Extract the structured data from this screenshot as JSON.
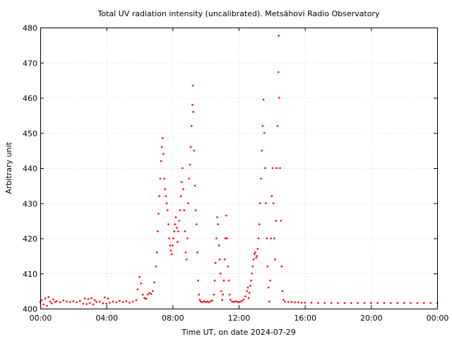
{
  "chart_data": {
    "type": "scatter",
    "title": "Total UV radiation intensity (uncalibrated). Metsähovi Radio Observatory",
    "xlabel": "Time UT, on date 2024-07-29",
    "ylabel": "Arbitrary unit",
    "xlim": [
      0,
      24
    ],
    "ylim": [
      400,
      480
    ],
    "x_ticks": [
      {
        "value": 0,
        "label": "00:00"
      },
      {
        "value": 4,
        "label": "04:00"
      },
      {
        "value": 8,
        "label": "08:00"
      },
      {
        "value": 12,
        "label": "12:00"
      },
      {
        "value": 16,
        "label": "16:00"
      },
      {
        "value": 20,
        "label": "20:00"
      },
      {
        "value": 24,
        "label": "00:00"
      }
    ],
    "y_ticks": [
      400,
      410,
      420,
      430,
      440,
      450,
      460,
      470,
      480
    ],
    "grid": true,
    "color": "#ff0000",
    "series": [
      {
        "name": "",
        "points": [
          [
            0.0,
            401.8
          ],
          [
            0.1,
            402.4
          ],
          [
            0.2,
            401.2
          ],
          [
            0.3,
            402.9
          ],
          [
            0.4,
            400.8
          ],
          [
            0.5,
            403.3
          ],
          [
            0.6,
            402.0
          ],
          [
            0.7,
            401.5
          ],
          [
            0.8,
            402.6
          ],
          [
            0.9,
            401.9
          ],
          [
            1.0,
            402.1
          ],
          [
            1.2,
            401.8
          ],
          [
            1.4,
            402.3
          ],
          [
            1.6,
            402.0
          ],
          [
            1.8,
            401.9
          ],
          [
            2.0,
            402.1
          ],
          [
            2.2,
            401.8
          ],
          [
            2.4,
            402.2
          ],
          [
            2.6,
            401.4
          ],
          [
            2.7,
            402.9
          ],
          [
            2.8,
            401.3
          ],
          [
            2.9,
            402.7
          ],
          [
            3.0,
            401.6
          ],
          [
            3.1,
            403.0
          ],
          [
            3.2,
            401.2
          ],
          [
            3.3,
            402.4
          ],
          [
            3.4,
            401.9
          ],
          [
            3.6,
            402.0
          ],
          [
            3.8,
            401.5
          ],
          [
            3.9,
            403.2
          ],
          [
            4.0,
            401.4
          ],
          [
            4.1,
            402.9
          ],
          [
            4.2,
            401.7
          ],
          [
            4.4,
            402.0
          ],
          [
            4.6,
            401.8
          ],
          [
            4.8,
            402.2
          ],
          [
            5.0,
            401.9
          ],
          [
            5.2,
            402.1
          ],
          [
            5.4,
            401.7
          ],
          [
            5.6,
            402.0
          ],
          [
            5.8,
            402.4
          ],
          [
            5.9,
            405.5
          ],
          [
            6.0,
            409.0
          ],
          [
            6.1,
            407.2
          ],
          [
            6.2,
            404.0
          ],
          [
            6.3,
            403.0
          ],
          [
            6.4,
            402.8
          ],
          [
            6.5,
            404.0
          ],
          [
            6.6,
            404.5
          ],
          [
            6.7,
            404.2
          ],
          [
            6.8,
            405.0
          ],
          [
            6.9,
            407.5
          ],
          [
            7.0,
            412.0
          ],
          [
            7.05,
            416.0
          ],
          [
            7.1,
            422.0
          ],
          [
            7.15,
            427.0
          ],
          [
            7.2,
            432.0
          ],
          [
            7.25,
            437.0
          ],
          [
            7.3,
            442.0
          ],
          [
            7.35,
            446.0
          ],
          [
            7.4,
            448.5
          ],
          [
            7.45,
            444.0
          ],
          [
            7.5,
            437.0
          ],
          [
            7.55,
            434.0
          ],
          [
            7.6,
            432.0
          ],
          [
            7.65,
            430.0
          ],
          [
            7.7,
            428.0
          ],
          [
            7.75,
            424.0
          ],
          [
            7.8,
            420.0
          ],
          [
            7.85,
            418.0
          ],
          [
            7.9,
            416.5
          ],
          [
            7.95,
            415.5
          ],
          [
            8.0,
            418.0
          ],
          [
            8.05,
            420.0
          ],
          [
            8.1,
            422.0
          ],
          [
            8.15,
            424.0
          ],
          [
            8.2,
            426.0
          ],
          [
            8.25,
            423.0
          ],
          [
            8.3,
            419.0
          ],
          [
            8.35,
            422.0
          ],
          [
            8.4,
            425.0
          ],
          [
            8.45,
            428.0
          ],
          [
            8.5,
            432.0
          ],
          [
            8.55,
            436.0
          ],
          [
            8.6,
            440.0
          ],
          [
            8.65,
            434.0
          ],
          [
            8.7,
            428.0
          ],
          [
            8.75,
            422.0
          ],
          [
            8.8,
            416.0
          ],
          [
            8.85,
            414.0
          ],
          [
            8.9,
            420.0
          ],
          [
            8.95,
            430.0
          ],
          [
            9.0,
            437.0
          ],
          [
            9.05,
            441.0
          ],
          [
            9.1,
            446.0
          ],
          [
            9.15,
            452.0
          ],
          [
            9.2,
            458.0
          ],
          [
            9.22,
            463.5
          ],
          [
            9.25,
            456.0
          ],
          [
            9.3,
            445.0
          ],
          [
            9.35,
            435.0
          ],
          [
            9.4,
            428.0
          ],
          [
            9.45,
            424.0
          ],
          [
            9.5,
            416.0
          ],
          [
            9.55,
            408.0
          ],
          [
            9.6,
            404.0
          ],
          [
            9.65,
            402.5
          ],
          [
            9.7,
            402.0
          ],
          [
            9.8,
            401.8
          ],
          [
            9.9,
            402.1
          ],
          [
            10.0,
            401.9
          ],
          [
            10.1,
            402.0
          ],
          [
            10.2,
            401.8
          ],
          [
            10.3,
            402.1
          ],
          [
            10.4,
            402.3
          ],
          [
            10.5,
            404.0
          ],
          [
            10.55,
            408.0
          ],
          [
            10.6,
            413.0
          ],
          [
            10.65,
            420.0
          ],
          [
            10.7,
            426.0
          ],
          [
            10.75,
            424.0
          ],
          [
            10.8,
            418.0
          ],
          [
            10.85,
            414.0
          ],
          [
            10.9,
            410.0
          ],
          [
            10.95,
            405.0
          ],
          [
            11.0,
            402.5
          ],
          [
            11.05,
            404.0
          ],
          [
            11.1,
            408.0
          ],
          [
            11.15,
            414.0
          ],
          [
            11.2,
            420.0
          ],
          [
            11.25,
            426.5
          ],
          [
            11.3,
            420.0
          ],
          [
            11.35,
            412.0
          ],
          [
            11.4,
            408.0
          ],
          [
            11.45,
            404.0
          ],
          [
            11.5,
            402.5
          ],
          [
            11.6,
            402.0
          ],
          [
            11.7,
            401.9
          ],
          [
            11.8,
            402.1
          ],
          [
            11.9,
            402.0
          ],
          [
            12.0,
            401.8
          ],
          [
            12.1,
            402.0
          ],
          [
            12.2,
            402.2
          ],
          [
            12.3,
            402.6
          ],
          [
            12.4,
            403.5
          ],
          [
            12.5,
            405.0
          ],
          [
            12.55,
            406.0
          ],
          [
            12.6,
            403.0
          ],
          [
            12.65,
            404.5
          ],
          [
            12.7,
            406.5
          ],
          [
            12.75,
            408.0
          ],
          [
            12.8,
            410.0
          ],
          [
            12.85,
            412.0
          ],
          [
            12.9,
            414.0
          ],
          [
            12.95,
            415.5
          ],
          [
            13.0,
            416.0
          ],
          [
            13.05,
            414.5
          ],
          [
            13.1,
            415.0
          ],
          [
            13.15,
            417.0
          ],
          [
            13.2,
            420.0
          ],
          [
            13.25,
            424.0
          ],
          [
            13.3,
            430.0
          ],
          [
            13.35,
            437.0
          ],
          [
            13.4,
            445.0
          ],
          [
            13.45,
            452.0
          ],
          [
            13.5,
            459.5
          ],
          [
            13.55,
            450.0
          ],
          [
            13.6,
            440.0
          ],
          [
            13.65,
            430.0
          ],
          [
            13.7,
            420.0
          ],
          [
            13.75,
            412.0
          ],
          [
            13.8,
            406.0
          ],
          [
            13.85,
            402.0
          ],
          [
            13.9,
            408.0
          ],
          [
            13.95,
            420.0
          ],
          [
            14.0,
            432.0
          ],
          [
            14.05,
            440.0
          ],
          [
            14.1,
            430.0
          ],
          [
            14.15,
            420.0
          ],
          [
            14.2,
            414.0
          ],
          [
            14.25,
            425.0
          ],
          [
            14.3,
            440.0
          ],
          [
            14.35,
            452.0
          ],
          [
            14.4,
            467.3
          ],
          [
            14.42,
            477.7
          ],
          [
            14.45,
            460.0
          ],
          [
            14.5,
            440.0
          ],
          [
            14.55,
            425.0
          ],
          [
            14.6,
            412.0
          ],
          [
            14.65,
            405.0
          ],
          [
            14.7,
            402.5
          ],
          [
            14.8,
            402.0
          ],
          [
            15.0,
            401.9
          ],
          [
            15.2,
            401.9
          ],
          [
            15.4,
            401.8
          ],
          [
            15.6,
            401.8
          ],
          [
            15.8,
            401.7
          ],
          [
            16.0,
            401.7
          ],
          [
            16.4,
            401.7
          ],
          [
            16.8,
            401.6
          ],
          [
            17.2,
            401.6
          ],
          [
            17.6,
            401.6
          ],
          [
            18.0,
            401.6
          ],
          [
            18.4,
            401.6
          ],
          [
            18.8,
            401.6
          ],
          [
            19.2,
            401.6
          ],
          [
            19.6,
            401.6
          ],
          [
            20.0,
            401.6
          ],
          [
            20.4,
            401.6
          ],
          [
            20.8,
            401.6
          ],
          [
            21.2,
            401.6
          ],
          [
            21.6,
            401.6
          ],
          [
            22.0,
            401.6
          ],
          [
            22.4,
            401.6
          ],
          [
            22.8,
            401.6
          ],
          [
            23.2,
            401.6
          ],
          [
            23.6,
            401.6
          ],
          [
            24.0,
            401.6
          ]
        ]
      }
    ]
  }
}
